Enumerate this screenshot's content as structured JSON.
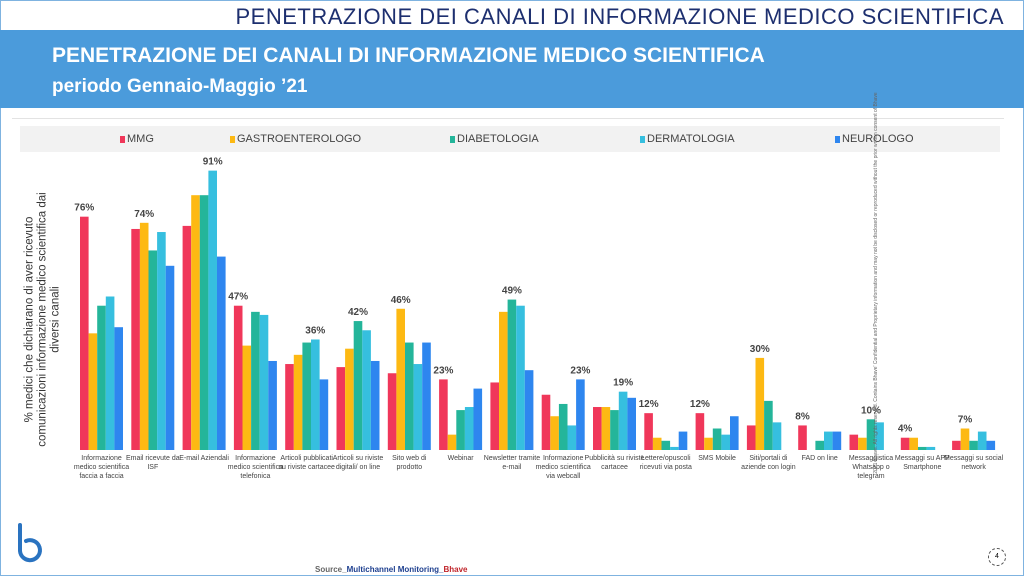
{
  "header": {
    "top_title": "PENETRAZIONE DEI CANALI DI INFORMAZIONE MEDICO SCIENTIFICA",
    "band_title": "PENETRAZIONE DEI CANALI DI INFORMAZIONE MEDICO SCIENTIFICA",
    "band_subtitle": "periodo Gennaio-Maggio ’21"
  },
  "footer": {
    "source_prefix": "Source_",
    "source_main": "Multichannel Monitoring_",
    "source_brand": "Bhave",
    "page": "4",
    "copyright": "2021 Bhave. All rights reserved. Contains Bhave' Confidential and Proprietary information and may not be disclosed or reproduced without the prior written consent of Bhave"
  },
  "chart_data": {
    "type": "bar",
    "ylabel": "% medici che dichiarano di aver ricevuto comunicazioni informazione medico scientifica dai diversi canali",
    "ylim": [
      0,
      100
    ],
    "legend_position": "top",
    "grid": false,
    "categories": [
      "Informazione medico scientifica faccia a faccia",
      "Email ricevute da ISF",
      "E-mail Aziendali",
      "Informazione medico scientifica telefonica",
      "Articoli pubblicati su riviste cartacee",
      "Articoli su riviste digitali/ on line",
      "Sito web di prodotto",
      "Webinar",
      "Newsletter tramite e-mail",
      "Informazione medico scientifica via webcall",
      "Pubblicità su riviste cartacee",
      "Lettere/opuscoli ricevuti via posta",
      "SMS Mobile",
      "Siti/portali di aziende con login",
      "FAD on line",
      "Messaggistica Whatsapp o telegram",
      "Messaggi su APP Smartphone",
      "Messaggi su social network"
    ],
    "data_labels": [
      "76%",
      "74%",
      "91%",
      "47%",
      "36%",
      "42%",
      "46%",
      "23%",
      "49%",
      "23%",
      "19%",
      "12%",
      "12%",
      "30%",
      "8%",
      "10%",
      "4%",
      "7%"
    ],
    "series": [
      {
        "name": "MMG",
        "color": "#f0375a",
        "values": [
          76,
          72,
          73,
          47,
          28,
          27,
          25,
          23,
          22,
          18,
          14,
          12,
          12,
          8,
          8,
          5,
          4,
          3
        ]
      },
      {
        "name": "GASTROENTEROLOGO",
        "color": "#fdb913",
        "values": [
          38,
          74,
          83,
          34,
          31,
          33,
          46,
          5,
          45,
          11,
          14,
          4,
          4,
          30,
          0,
          4,
          4,
          7
        ]
      },
      {
        "name": "DIABETOLOGIA",
        "color": "#24b59a",
        "values": [
          47,
          65,
          83,
          45,
          35,
          42,
          35,
          13,
          49,
          15,
          13,
          3,
          7,
          16,
          3,
          10,
          1,
          3
        ]
      },
      {
        "name": "DERMATOLOGIA",
        "color": "#36bfdf",
        "values": [
          50,
          71,
          91,
          44,
          36,
          39,
          28,
          14,
          47,
          8,
          19,
          1,
          5,
          9,
          6,
          9,
          1,
          6
        ]
      },
      {
        "name": "NEUROLOGO",
        "color": "#2e86ef",
        "values": [
          40,
          60,
          63,
          29,
          23,
          29,
          35,
          20,
          26,
          23,
          17,
          6,
          11,
          0,
          6,
          0,
          0,
          3
        ]
      }
    ]
  }
}
